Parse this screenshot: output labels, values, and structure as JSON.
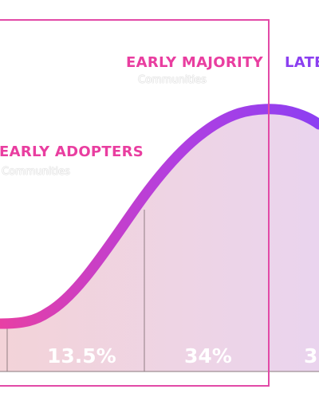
{
  "segments": [
    {
      "label": "EARLY ADOPTERS",
      "sublabel": "Communities",
      "percent": "13.5%",
      "color": "#e93ea0"
    },
    {
      "label": "EARLY MAJORITY",
      "sublabel": "Communities",
      "percent": "34%",
      "color": "#e93ea0"
    },
    {
      "label": "LATE",
      "sublabel": "",
      "percent": "3",
      "color": "#8b3ff0"
    }
  ],
  "colors": {
    "curve_start": "#e73fa4",
    "curve_end": "#8c3ff2",
    "frame": "#e24aa7",
    "fill_start": "#f3d3d8",
    "fill_end": "#ead4ee"
  }
}
